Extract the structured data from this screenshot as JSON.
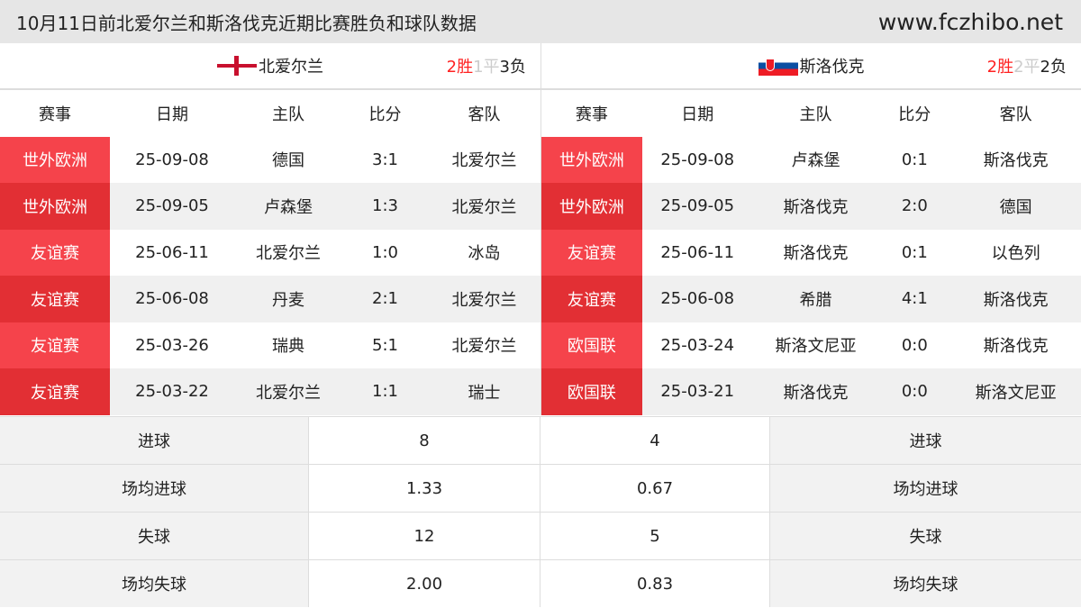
{
  "header": {
    "title": "10月11日前北爱尔兰和斯洛伐克近期比赛胜负和球队数据",
    "site": "www.fczhibo.net"
  },
  "columns": [
    "赛事",
    "日期",
    "主队",
    "比分",
    "客队"
  ],
  "left": {
    "team": "北爱尔兰",
    "flag": "northern-ireland-flag-icon",
    "wins": "2胜",
    "draws": "1平",
    "losses": "3负",
    "matches": [
      [
        "世外欧洲",
        "25-09-08",
        "德国",
        "3:1",
        "北爱尔兰"
      ],
      [
        "世外欧洲",
        "25-09-05",
        "卢森堡",
        "1:3",
        "北爱尔兰"
      ],
      [
        "友谊赛",
        "25-06-11",
        "北爱尔兰",
        "1:0",
        "冰岛"
      ],
      [
        "友谊赛",
        "25-06-08",
        "丹麦",
        "2:1",
        "北爱尔兰"
      ],
      [
        "友谊赛",
        "25-03-26",
        "瑞典",
        "5:1",
        "北爱尔兰"
      ],
      [
        "友谊赛",
        "25-03-22",
        "北爱尔兰",
        "1:1",
        "瑞士"
      ]
    ]
  },
  "right": {
    "team": "斯洛伐克",
    "flag": "slovakia-flag-icon",
    "wins": "2胜",
    "draws": "2平",
    "losses": "2负",
    "matches": [
      [
        "世外欧洲",
        "25-09-08",
        "卢森堡",
        "0:1",
        "斯洛伐克"
      ],
      [
        "世外欧洲",
        "25-09-05",
        "斯洛伐克",
        "2:0",
        "德国"
      ],
      [
        "友谊赛",
        "25-06-11",
        "斯洛伐克",
        "0:1",
        "以色列"
      ],
      [
        "友谊赛",
        "25-06-08",
        "希腊",
        "4:1",
        "斯洛伐克"
      ],
      [
        "欧国联",
        "25-03-24",
        "斯洛文尼亚",
        "0:0",
        "斯洛伐克"
      ],
      [
        "欧国联",
        "25-03-21",
        "斯洛伐克",
        "0:0",
        "斯洛文尼亚"
      ]
    ]
  },
  "stats": [
    {
      "label": "进球",
      "left": "8",
      "right": "4"
    },
    {
      "label": "场均进球",
      "left": "1.33",
      "right": "0.67"
    },
    {
      "label": "失球",
      "left": "12",
      "right": "5"
    },
    {
      "label": "场均失球",
      "left": "2.00",
      "right": "0.83"
    }
  ],
  "colors": {
    "win": "#ff2222",
    "draw": "#cccccc",
    "comp_odd": "#f5434b",
    "comp_even": "#e22f34"
  }
}
